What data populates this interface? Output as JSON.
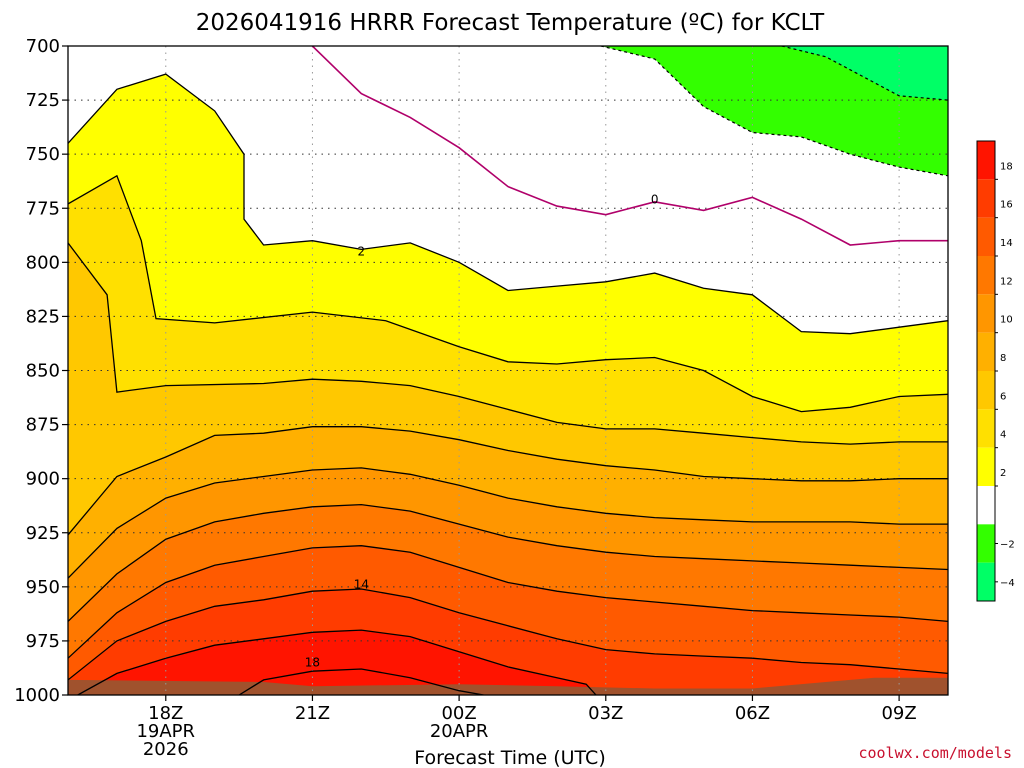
{
  "chart_data": {
    "type": "contour",
    "title": "2026041916 HRRR Forecast Temperature (ºC) for KCLT",
    "xlabel": "Forecast Time (UTC)",
    "credit": "coolwx.com/models",
    "y_ticks": [
      "700",
      "725",
      "750",
      "775",
      "800",
      "825",
      "850",
      "875",
      "900",
      "925",
      "950",
      "975",
      "1000"
    ],
    "x_ticks": [
      {
        "hour": 18,
        "lines": [
          "18Z",
          "19APR",
          "2026"
        ]
      },
      {
        "hour": 21,
        "lines": [
          "21Z"
        ]
      },
      {
        "hour": 24,
        "lines": [
          "00Z",
          "20APR"
        ]
      },
      {
        "hour": 27,
        "lines": [
          "03Z"
        ]
      },
      {
        "hour": 30,
        "lines": [
          "06Z"
        ]
      },
      {
        "hour": 33,
        "lines": [
          "09Z"
        ]
      }
    ],
    "x_range": [
      16,
      34
    ],
    "y_range": [
      700,
      1000
    ],
    "levels": [
      -6,
      -4,
      -2,
      0,
      2,
      4,
      6,
      8,
      10,
      12,
      14,
      16,
      18,
      20
    ],
    "colorbar_ticks": [
      "18",
      "16",
      "14",
      "12",
      "10",
      "8",
      "6",
      "4",
      "2",
      "−2",
      "−4"
    ],
    "contour_labels": [
      {
        "text": "0",
        "hour": 28.0,
        "p": 771
      },
      {
        "text": "2",
        "hour": 22.0,
        "p": 795
      },
      {
        "text": "14",
        "hour": 22.0,
        "p": 949
      },
      {
        "text": "18",
        "hour": 21.0,
        "p": 985
      }
    ],
    "fill_colors": {
      "minus4_to_minus2": "#33ff00",
      "minus6_to_minus4": "#00ff66",
      "zero_to_2": "#ffffff",
      "2_to_4": "#ffff00",
      "4_to_6": "#ffe000",
      "6_to_8": "#ffc800",
      "8_to_10": "#ffb000",
      "10_to_12": "#ff9600",
      "12_to_14": "#ff7800",
      "14_to_16": "#ff5a00",
      "16_to_18": "#ff3c00",
      "18_to_20": "#ff1400",
      "ground": "#a0522d"
    },
    "isotherms": {
      "minus2": [
        [
          26.9,
          700
        ],
        [
          28.0,
          706
        ],
        [
          29.0,
          728
        ],
        [
          30.0,
          740
        ],
        [
          31.0,
          742
        ],
        [
          32.0,
          750
        ],
        [
          33.0,
          756
        ],
        [
          34.0,
          760
        ]
      ],
      "minus4": [
        [
          30.6,
          700
        ],
        [
          31.5,
          705
        ],
        [
          32.0,
          711
        ],
        [
          33.0,
          723
        ],
        [
          34.0,
          725
        ]
      ],
      "zero": [
        [
          21.0,
          700
        ],
        [
          22.0,
          722
        ],
        [
          23.0,
          733
        ],
        [
          24.0,
          747
        ],
        [
          25.0,
          765
        ],
        [
          26.0,
          774
        ],
        [
          27.0,
          778
        ],
        [
          28.0,
          772
        ],
        [
          29.0,
          776
        ],
        [
          30.0,
          770
        ],
        [
          31.0,
          780
        ],
        [
          32.0,
          792
        ],
        [
          33.0,
          790
        ],
        [
          34.0,
          790
        ]
      ],
      "two_a": [
        [
          16.0,
          745
        ],
        [
          17.0,
          720
        ],
        [
          18.0,
          713
        ],
        [
          19.0,
          730
        ],
        [
          19.6,
          750
        ],
        [
          19.6,
          780
        ],
        [
          20.0,
          792
        ],
        [
          21.0,
          790
        ],
        [
          22.0,
          794
        ],
        [
          23.0,
          791
        ],
        [
          24.0,
          800
        ],
        [
          25.0,
          813
        ],
        [
          26.0,
          811
        ],
        [
          27.0,
          809
        ],
        [
          28.0,
          805
        ],
        [
          29.0,
          812
        ],
        [
          30.0,
          815
        ],
        [
          31.0,
          832
        ],
        [
          32.0,
          833
        ],
        [
          33.0,
          830
        ],
        [
          34.0,
          827
        ]
      ],
      "four": [
        [
          16.0,
          773
        ],
        [
          17.0,
          760
        ],
        [
          17.5,
          790
        ],
        [
          17.8,
          826
        ],
        [
          19.0,
          828
        ],
        [
          21.0,
          823
        ],
        [
          22.5,
          827
        ],
        [
          24.0,
          839
        ],
        [
          25.0,
          846
        ],
        [
          26.0,
          847
        ],
        [
          27.0,
          845
        ],
        [
          28.0,
          844
        ],
        [
          29.0,
          850
        ],
        [
          30.0,
          862
        ],
        [
          31.0,
          869
        ],
        [
          32.0,
          867
        ],
        [
          33.0,
          862
        ],
        [
          34.0,
          861
        ]
      ],
      "six": [
        [
          16.0,
          791
        ],
        [
          16.8,
          815
        ],
        [
          17.0,
          860
        ],
        [
          18.0,
          857
        ],
        [
          20.0,
          856
        ],
        [
          21.0,
          854
        ],
        [
          22.0,
          855
        ],
        [
          23.0,
          857
        ],
        [
          24.0,
          862
        ],
        [
          25.0,
          868
        ],
        [
          26.0,
          874
        ],
        [
          27.0,
          877
        ],
        [
          28.0,
          877
        ],
        [
          29.0,
          879
        ],
        [
          30.0,
          881
        ],
        [
          31.0,
          883
        ],
        [
          32.0,
          884
        ],
        [
          33.0,
          883
        ],
        [
          34.0,
          883
        ]
      ],
      "eight": [
        [
          16.0,
          926
        ],
        [
          17.0,
          899
        ],
        [
          18.0,
          890
        ],
        [
          19.0,
          880
        ],
        [
          20.0,
          879
        ],
        [
          21.0,
          876
        ],
        [
          22.0,
          876
        ],
        [
          23.0,
          878
        ],
        [
          24.0,
          882
        ],
        [
          25.0,
          887
        ],
        [
          26.0,
          891
        ],
        [
          27.0,
          894
        ],
        [
          28.0,
          896
        ],
        [
          29.0,
          899
        ],
        [
          30.0,
          900
        ],
        [
          31.0,
          901
        ],
        [
          32.0,
          901
        ],
        [
          33.0,
          900
        ],
        [
          34.0,
          900
        ]
      ],
      "ten": [
        [
          16.0,
          946
        ],
        [
          17.0,
          923
        ],
        [
          18.0,
          909
        ],
        [
          19.0,
          902
        ],
        [
          20.0,
          899
        ],
        [
          21.0,
          896
        ],
        [
          22.0,
          895
        ],
        [
          23.0,
          898
        ],
        [
          24.0,
          903
        ],
        [
          25.0,
          909
        ],
        [
          26.0,
          913
        ],
        [
          27.0,
          916
        ],
        [
          28.0,
          918
        ],
        [
          29.0,
          919
        ],
        [
          30.0,
          920
        ],
        [
          31.0,
          920
        ],
        [
          32.0,
          920
        ],
        [
          33.0,
          921
        ],
        [
          34.0,
          921
        ]
      ],
      "twelve": [
        [
          16.0,
          966
        ],
        [
          17.0,
          944
        ],
        [
          18.0,
          928
        ],
        [
          19.0,
          920
        ],
        [
          20.0,
          916
        ],
        [
          21.0,
          913
        ],
        [
          22.0,
          912
        ],
        [
          23.0,
          915
        ],
        [
          24.0,
          921
        ],
        [
          25.0,
          927
        ],
        [
          26.0,
          931
        ],
        [
          27.0,
          934
        ],
        [
          28.0,
          936
        ],
        [
          29.0,
          937
        ],
        [
          30.0,
          938
        ],
        [
          31.0,
          939
        ],
        [
          32.0,
          940
        ],
        [
          33.0,
          941
        ],
        [
          34.0,
          942
        ]
      ],
      "fourteen": [
        [
          16.0,
          983
        ],
        [
          17.0,
          962
        ],
        [
          18.0,
          948
        ],
        [
          19.0,
          940
        ],
        [
          20.0,
          936
        ],
        [
          21.0,
          932
        ],
        [
          22.0,
          931
        ],
        [
          23.0,
          934
        ],
        [
          24.0,
          941
        ],
        [
          25.0,
          948
        ],
        [
          26.0,
          952
        ],
        [
          27.0,
          955
        ],
        [
          28.0,
          957
        ],
        [
          29.0,
          959
        ],
        [
          30.0,
          961
        ],
        [
          31.0,
          962
        ],
        [
          32.0,
          963
        ],
        [
          33.0,
          964
        ],
        [
          34.0,
          966
        ]
      ],
      "sixteen": [
        [
          16.0,
          993
        ],
        [
          17.0,
          975
        ],
        [
          18.0,
          966
        ],
        [
          19.0,
          959
        ],
        [
          20.0,
          956
        ],
        [
          21.0,
          952
        ],
        [
          22.0,
          951
        ],
        [
          23.0,
          955
        ],
        [
          24.0,
          962
        ],
        [
          25.0,
          968
        ],
        [
          26.0,
          974
        ],
        [
          27.0,
          979
        ],
        [
          28.0,
          981
        ],
        [
          29.0,
          982
        ],
        [
          30.0,
          983
        ],
        [
          31.0,
          985
        ],
        [
          32.0,
          986
        ],
        [
          33.0,
          988
        ],
        [
          34.0,
          990
        ]
      ],
      "eighteen": [
        [
          16.2,
          1000
        ],
        [
          17.0,
          990
        ],
        [
          18.0,
          983
        ],
        [
          19.0,
          977
        ],
        [
          20.0,
          974
        ],
        [
          21.0,
          971
        ],
        [
          22.0,
          970
        ],
        [
          23.0,
          973
        ],
        [
          24.0,
          980
        ],
        [
          25.0,
          987
        ],
        [
          26.0,
          992
        ],
        [
          26.6,
          995
        ],
        [
          26.8,
          1000
        ]
      ],
      "twenty": [
        [
          19.5,
          1000
        ],
        [
          20.0,
          993
        ],
        [
          21.0,
          989
        ],
        [
          22.0,
          988
        ],
        [
          23.0,
          992
        ],
        [
          24.0,
          998
        ],
        [
          24.5,
          1000
        ]
      ],
      "ground_top": [
        [
          16.0,
          993
        ],
        [
          20.0,
          994
        ],
        [
          21.0,
          996
        ],
        [
          24.0,
          995
        ],
        [
          26.0,
          996
        ],
        [
          28.0,
          997
        ],
        [
          30.0,
          997
        ],
        [
          31.5,
          994
        ],
        [
          32.5,
          992
        ],
        [
          34.0,
          992
        ]
      ]
    }
  }
}
